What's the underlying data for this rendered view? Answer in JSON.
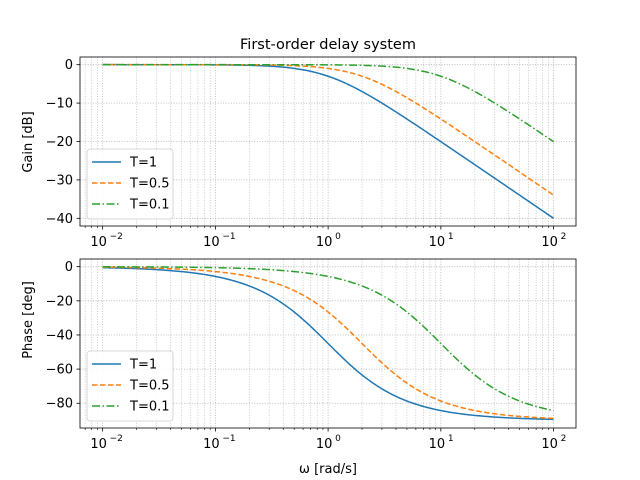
{
  "chart_data": [
    {
      "type": "line",
      "title": "First-order delay system",
      "xlabel": "",
      "ylabel": "Gain [dB]",
      "xscale": "log",
      "xlim": [
        0.0063,
        158
      ],
      "ylim": [
        -42,
        2
      ],
      "xticks": [
        0.01,
        0.1,
        1,
        10,
        100
      ],
      "xtick_labels": [
        {
          "base": "10",
          "exp": "−2"
        },
        {
          "base": "10",
          "exp": "−1"
        },
        {
          "base": "10",
          "exp": "0"
        },
        {
          "base": "10",
          "exp": "1"
        },
        {
          "base": "10",
          "exp": "2"
        }
      ],
      "yticks": [
        0,
        -10,
        -20,
        -30,
        -40
      ],
      "ytick_labels": [
        "0",
        "−10",
        "−20",
        "−30",
        "−40"
      ],
      "grid": "both",
      "legend": "lower-left",
      "series": [
        {
          "name": "T=1",
          "T": 1,
          "color": "#1f77b4",
          "dash": "solid",
          "x": [
            0.01,
            0.1,
            0.3,
            0.5,
            1,
            2,
            5,
            10,
            20,
            50,
            100
          ],
          "values": [
            0.0,
            -0.04,
            -0.37,
            -0.97,
            -3.01,
            -6.99,
            -14.15,
            -20.04,
            -26.03,
            -33.98,
            -40.0
          ]
        },
        {
          "name": "T=0.5",
          "T": 0.5,
          "color": "#ff7f0e",
          "dash": "dashed",
          "x": [
            0.01,
            0.1,
            0.5,
            1,
            2,
            5,
            10,
            20,
            50,
            100
          ],
          "values": [
            0.0,
            -0.01,
            -0.26,
            -0.97,
            -3.01,
            -8.6,
            -14.15,
            -20.04,
            -27.96,
            -33.98
          ]
        },
        {
          "name": "T=0.1",
          "T": 0.1,
          "color": "#2ca02c",
          "dash": "dashdot",
          "x": [
            0.01,
            0.1,
            1,
            3,
            5,
            10,
            20,
            50,
            100
          ],
          "values": [
            0.0,
            0.0,
            -0.04,
            -0.37,
            -0.97,
            -3.01,
            -6.99,
            -14.15,
            -20.04
          ]
        }
      ]
    },
    {
      "type": "line",
      "title": "",
      "xlabel": "ω [rad/s]",
      "ylabel": "Phase [deg]",
      "xscale": "log",
      "xlim": [
        0.0063,
        158
      ],
      "ylim": [
        -94.5,
        4.5
      ],
      "xticks": [
        0.01,
        0.1,
        1,
        10,
        100
      ],
      "xtick_labels": [
        {
          "base": "10",
          "exp": "−2"
        },
        {
          "base": "10",
          "exp": "−1"
        },
        {
          "base": "10",
          "exp": "0"
        },
        {
          "base": "10",
          "exp": "1"
        },
        {
          "base": "10",
          "exp": "2"
        }
      ],
      "yticks": [
        0,
        -20,
        -40,
        -60,
        -80
      ],
      "ytick_labels": [
        "0",
        "−20",
        "−40",
        "−60",
        "−80"
      ],
      "grid": "both",
      "legend": "lower-left",
      "series": [
        {
          "name": "T=1",
          "T": 1,
          "color": "#1f77b4",
          "dash": "solid",
          "x": [
            0.01,
            0.1,
            0.3,
            0.5,
            1,
            2,
            5,
            10,
            20,
            50,
            100
          ],
          "values": [
            -0.57,
            -5.71,
            -16.7,
            -26.57,
            -45.0,
            -63.43,
            -78.69,
            -84.29,
            -87.14,
            -88.85,
            -89.43
          ]
        },
        {
          "name": "T=0.5",
          "T": 0.5,
          "color": "#ff7f0e",
          "dash": "dashed",
          "x": [
            0.01,
            0.1,
            0.5,
            1,
            2,
            5,
            10,
            20,
            50,
            100
          ],
          "values": [
            -0.29,
            -2.86,
            -14.04,
            -26.57,
            -45.0,
            -68.2,
            -78.69,
            -84.29,
            -87.71,
            -88.85
          ]
        },
        {
          "name": "T=0.1",
          "T": 0.1,
          "color": "#2ca02c",
          "dash": "dashdot",
          "x": [
            0.01,
            0.1,
            1,
            3,
            5,
            10,
            20,
            50,
            100
          ],
          "values": [
            -0.06,
            -0.57,
            -5.71,
            -16.7,
            -26.57,
            -45.0,
            -63.43,
            -78.69,
            -84.29
          ]
        }
      ]
    }
  ]
}
